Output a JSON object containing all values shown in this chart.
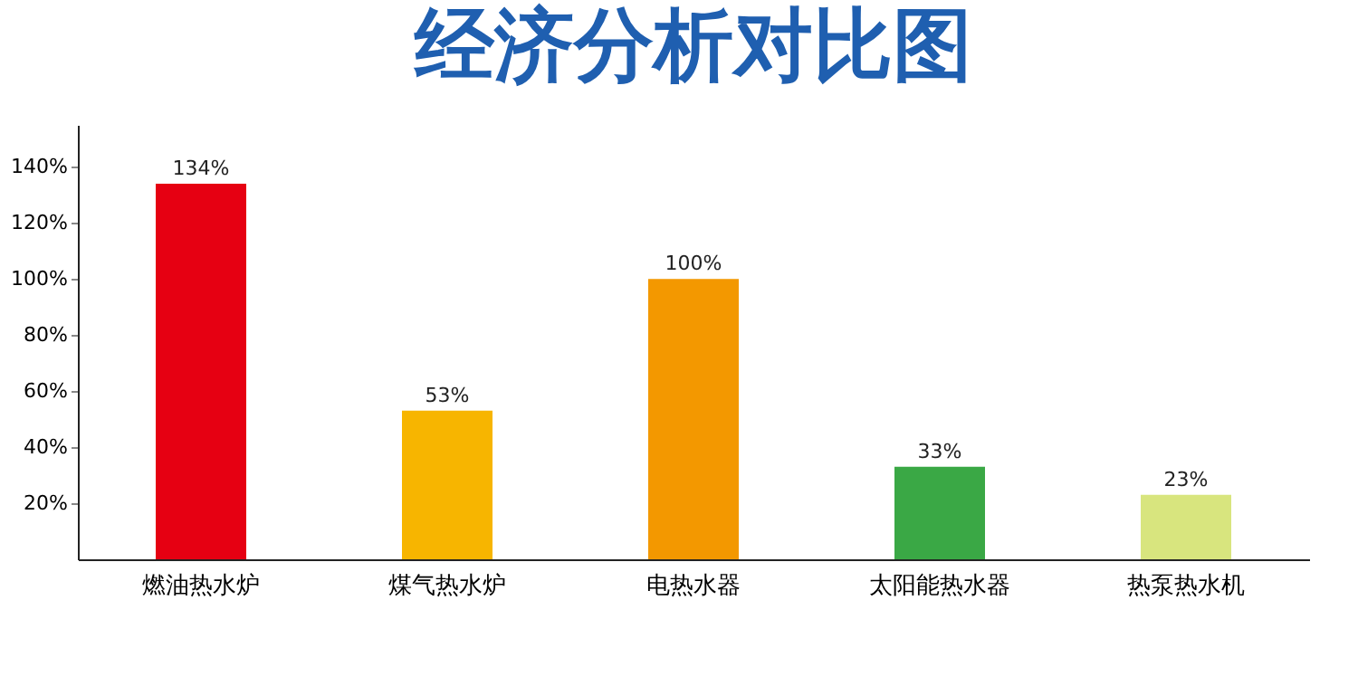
{
  "chart_data": {
    "type": "bar",
    "title": "经济分析对比图",
    "categories": [
      "燃油热水炉",
      "煤气热水炉",
      "电热水器",
      "太阳能热水器",
      "热泵热水机"
    ],
    "values": [
      134,
      53,
      100,
      33,
      23
    ],
    "colors": [
      "#e60012",
      "#f7b500",
      "#f39800",
      "#3aa845",
      "#d8e57e"
    ],
    "value_labels": [
      "134%",
      "53%",
      "100%",
      "33%",
      "23%"
    ],
    "ylim": [
      0,
      155
    ],
    "yticks": [
      {
        "value": 20,
        "label": "20%"
      },
      {
        "value": 40,
        "label": "40%"
      },
      {
        "value": 60,
        "label": "60%"
      },
      {
        "value": 80,
        "label": "80%"
      },
      {
        "value": 100,
        "label": "100%"
      },
      {
        "value": 120,
        "label": "120%"
      },
      {
        "value": 140,
        "label": "140%"
      }
    ],
    "grid": false
  }
}
